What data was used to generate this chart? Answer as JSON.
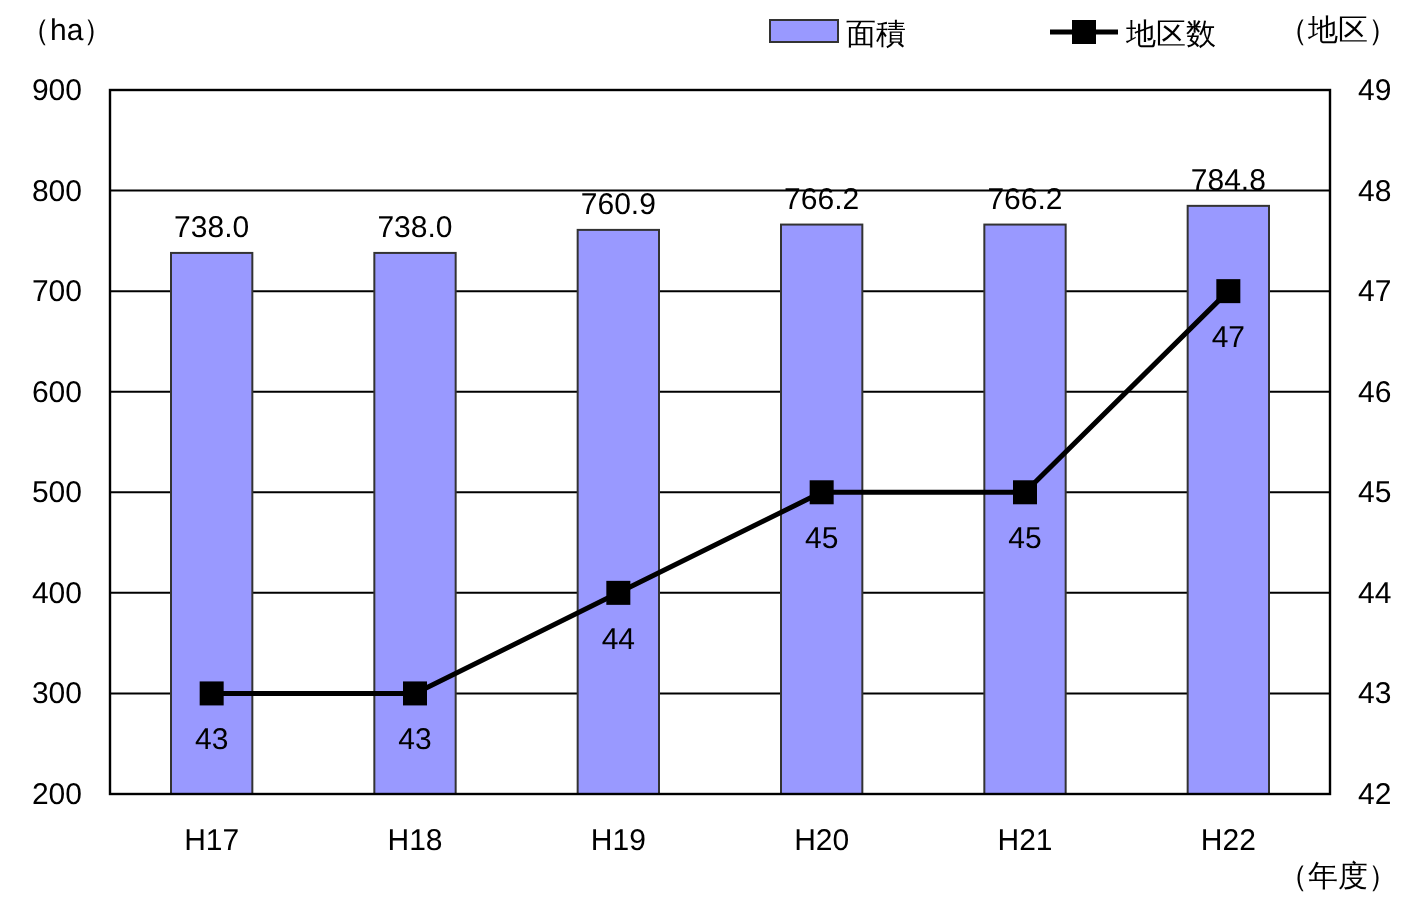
{
  "chart_data": {
    "type": "bar",
    "categories": [
      "H17",
      "H18",
      "H19",
      "H20",
      "H21",
      "H22"
    ],
    "xlabel": "（年度）",
    "ylabel": "（ha）",
    "y2label": "（地区）",
    "ylim": [
      200,
      900
    ],
    "yticks": [
      200,
      300,
      400,
      500,
      600,
      700,
      800,
      900
    ],
    "y2lim": [
      42,
      49
    ],
    "y2ticks": [
      42,
      43,
      44,
      45,
      46,
      47,
      48,
      49
    ],
    "grid": "y",
    "legend": "top right",
    "marker": "square",
    "line_style": "solid",
    "series": [
      {
        "name": "面積",
        "color": "#9999ff",
        "values": [
          738.0,
          738.0,
          760.9,
          766.2,
          766.2,
          784.8
        ],
        "value_labels": [
          "738.0",
          "738.0",
          "760.9",
          "766.2",
          "766.2",
          "784.8"
        ]
      },
      {
        "name": "地区数",
        "type": "line",
        "axis": "y2",
        "color": "#000000",
        "values": [
          43,
          43,
          44,
          45,
          45,
          47
        ],
        "value_labels": [
          "43",
          "43",
          "44",
          "45",
          "45",
          "47"
        ]
      }
    ]
  }
}
